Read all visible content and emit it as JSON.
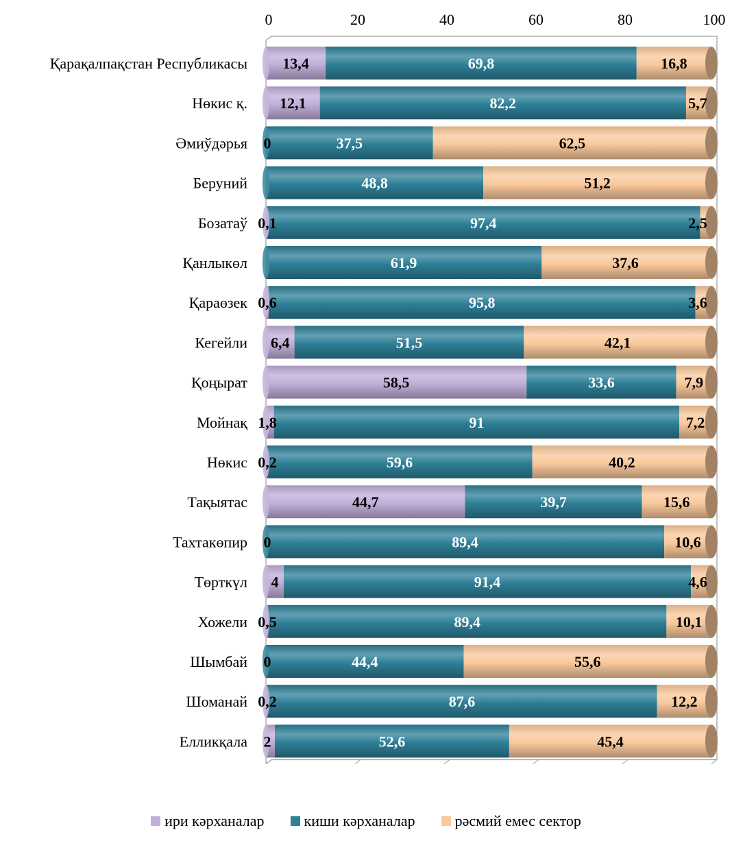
{
  "chart_data": {
    "type": "bar",
    "orientation": "horizontal",
    "stacked": true,
    "percent": true,
    "title": "",
    "xlabel": "",
    "ylabel": "",
    "xlim": [
      0,
      100
    ],
    "xticks": [
      "0",
      "20",
      "40",
      "60",
      "80",
      "100"
    ],
    "x_axis_position": "top",
    "grid": false,
    "legend_position": "bottom",
    "categories": [
      "Қарақалпақстан Республикасы",
      "Нөкис қ.",
      "Әмиўдәрья",
      "Беруний",
      "Бозатаў",
      "Қанлыкөл",
      "Қараөзек",
      "Кегейли",
      "Қоңырат",
      "Мойнақ",
      "Нөкис",
      "Тақыятас",
      "Тахтакөпир",
      "Төрткүл",
      "Хожели",
      "Шымбай",
      "Шоманай",
      "Елликқала"
    ],
    "series": [
      {
        "name": "ири кәрханалар",
        "color": "#bfaed8",
        "values": [
          13.4,
          12.1,
          0,
          0,
          0.1,
          0,
          0.6,
          6.4,
          58.5,
          1.8,
          0.2,
          44.7,
          0,
          4,
          0.5,
          0,
          0.2,
          2
        ],
        "labels": [
          "13,4",
          "12,1",
          "0",
          "",
          "0,1",
          "",
          "0,6",
          "6,4",
          "58,5",
          "1,8",
          "0,2",
          "44,7",
          "0",
          "4",
          "0,5",
          "0",
          "0,2",
          "2"
        ]
      },
      {
        "name": "киши кәрханалар",
        "color": "#2e7f97",
        "values": [
          69.8,
          82.2,
          37.5,
          48.8,
          97.4,
          61.9,
          95.8,
          51.5,
          33.6,
          91,
          59.6,
          39.7,
          89.4,
          91.4,
          89.4,
          44.4,
          87.6,
          52.6
        ],
        "labels": [
          "69,8",
          "82,2",
          "37,5",
          "48,8",
          "97,4",
          "61,9",
          "95,8",
          "51,5",
          "33,6",
          "91",
          "59,6",
          "39,7",
          "89,4",
          "91,4",
          "89,4",
          "44,4",
          "87,6",
          "52,6"
        ]
      },
      {
        "name": "рәсмий емес сектор",
        "color": "#f9c89b",
        "values": [
          16.8,
          5.7,
          62.5,
          51.2,
          2.5,
          37.6,
          3.6,
          42.1,
          7.9,
          7.2,
          40.2,
          15.6,
          10.6,
          4.6,
          10.1,
          55.6,
          12.2,
          45.4
        ],
        "labels": [
          "16,8",
          "5,7",
          "62,5",
          "51,2",
          "2,5",
          "37,6",
          "3,6",
          "42,1",
          "7,9",
          "7,2",
          "40,2",
          "15,6",
          "10,6",
          "4,6",
          "10,1",
          "55,6",
          "12,2",
          "45,4"
        ]
      }
    ]
  }
}
